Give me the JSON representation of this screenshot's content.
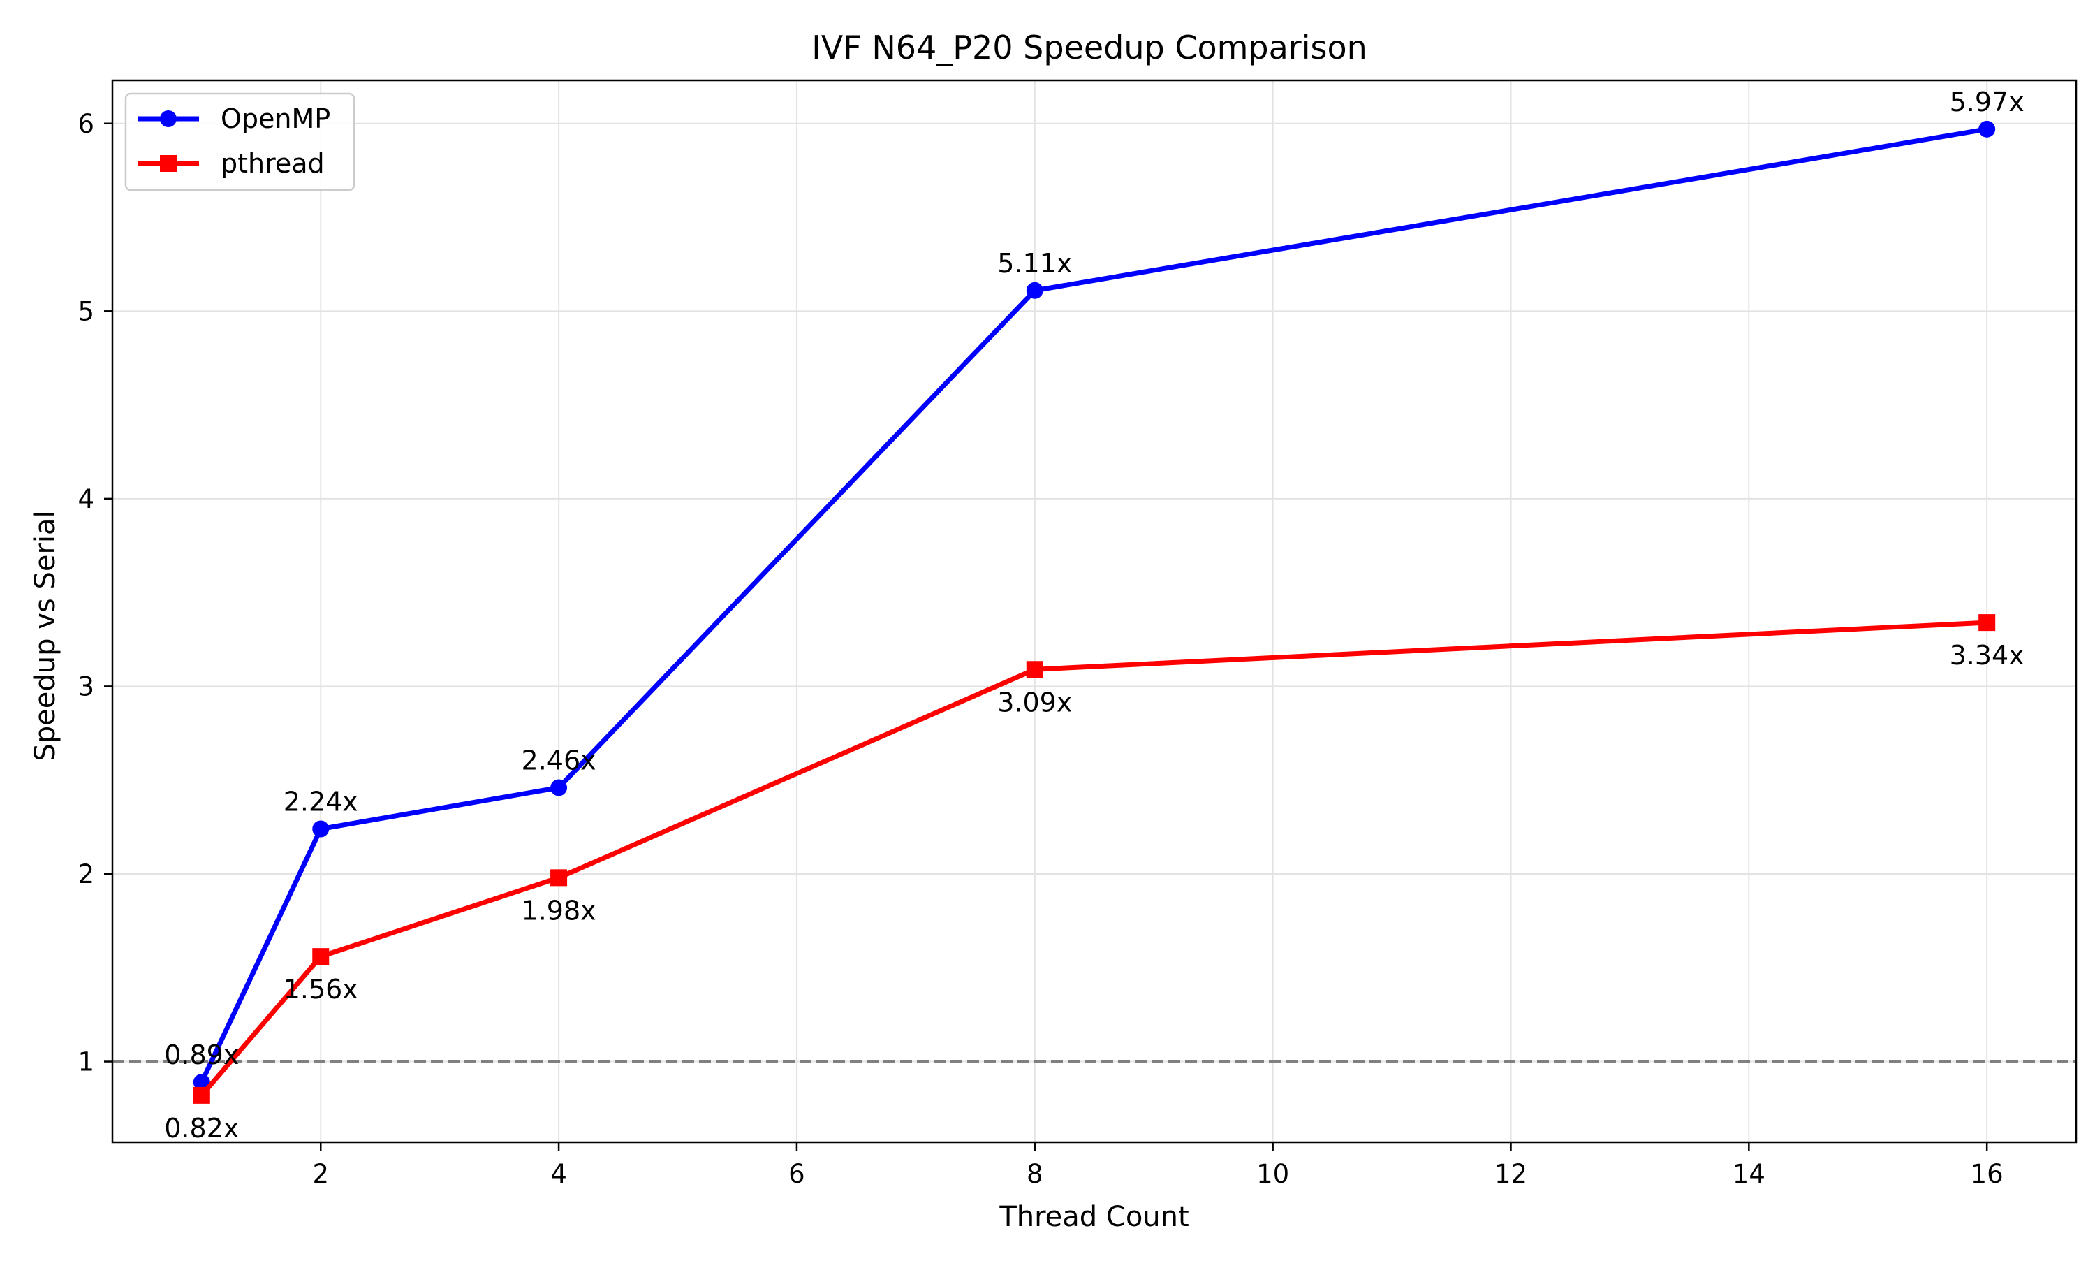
{
  "chart_data": {
    "type": "line",
    "title": "IVF N64_P20 Speedup Comparison",
    "xlabel": "Thread Count",
    "ylabel": "Speedup vs Serial",
    "xlim": [
      0.25,
      16.75
    ],
    "ylim": [
      0.57,
      6.23
    ],
    "xticks": [
      2,
      4,
      6,
      8,
      10,
      12,
      14,
      16
    ],
    "yticks": [
      1,
      2,
      3,
      4,
      5,
      6
    ],
    "grid": true,
    "legend_position": "top-left",
    "reference_line": {
      "y": 1,
      "style": "dashed",
      "color": "#808080"
    },
    "x": [
      1,
      2,
      4,
      8,
      16
    ],
    "series": [
      {
        "name": "OpenMP",
        "color": "#0000ff",
        "marker": "circle",
        "values": [
          0.89,
          2.24,
          2.46,
          5.11,
          5.97
        ],
        "labels": [
          "0.89x",
          "2.24x",
          "2.46x",
          "5.11x",
          "5.97x"
        ],
        "label_position": "above"
      },
      {
        "name": "pthread",
        "color": "#ff0000",
        "marker": "square",
        "values": [
          0.82,
          1.56,
          1.98,
          3.09,
          3.34
        ],
        "labels": [
          "0.82x",
          "1.56x",
          "1.98x",
          "3.09x",
          "3.34x"
        ],
        "label_position": "below"
      }
    ]
  }
}
